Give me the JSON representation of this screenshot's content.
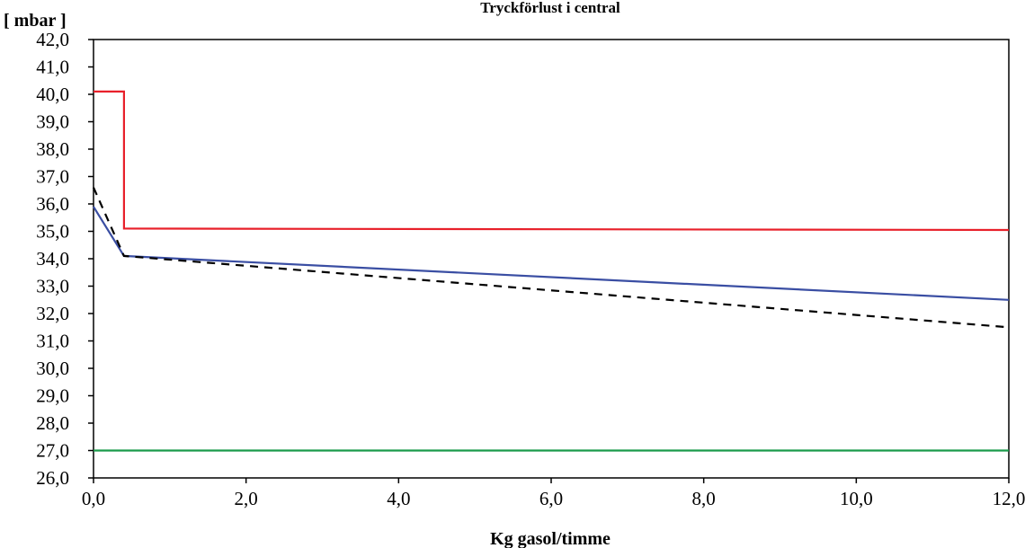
{
  "chart_data": {
    "type": "line",
    "title": "Tryckförlust i central",
    "xlabel": "Kg gasol/timme",
    "ylabel": "[ mbar ]",
    "xlim": [
      0,
      12
    ],
    "ylim": [
      26,
      42
    ],
    "x_ticks": [
      "0,0",
      "2,0",
      "4,0",
      "6,0",
      "8,0",
      "10,0",
      "12,0"
    ],
    "y_ticks": [
      "26,0",
      "27,0",
      "28,0",
      "29,0",
      "30,0",
      "31,0",
      "32,0",
      "33,0",
      "34,0",
      "35,0",
      "36,0",
      "37,0",
      "38,0",
      "39,0",
      "40,0",
      "41,0",
      "42,0"
    ],
    "grid": false,
    "series": [
      {
        "color": "#e8202a",
        "dash": "solid",
        "points": [
          [
            0.0,
            40.1
          ],
          [
            0.4,
            40.1
          ],
          [
            0.4,
            35.1
          ],
          [
            12.0,
            35.05
          ]
        ]
      },
      {
        "color": "#3a4ea3",
        "dash": "solid",
        "points": [
          [
            0.0,
            35.9
          ],
          [
            0.4,
            34.1
          ],
          [
            12.0,
            32.5
          ]
        ]
      },
      {
        "color": "#000000",
        "dash": "dashed",
        "points": [
          [
            0.0,
            36.6
          ],
          [
            0.4,
            34.1
          ],
          [
            12.0,
            31.5
          ]
        ]
      },
      {
        "color": "#1a9a4a",
        "dash": "solid",
        "points": [
          [
            0.0,
            27.0
          ],
          [
            12.0,
            27.0
          ]
        ]
      }
    ]
  }
}
